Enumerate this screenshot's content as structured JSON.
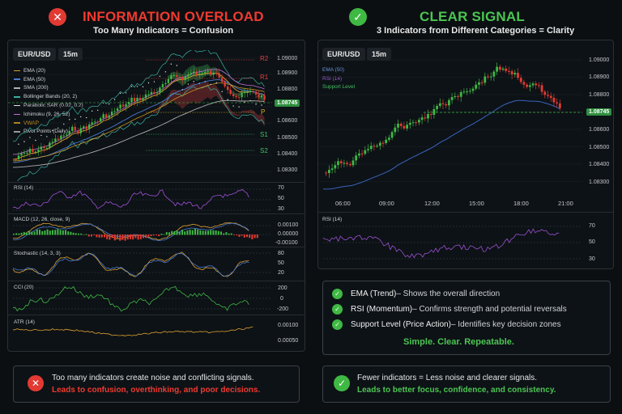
{
  "left": {
    "title": "INFORMATION OVERLOAD",
    "subtitle": "Too Many Indicators = Confusion",
    "symbol": "EUR/USD",
    "timeframe": "15m",
    "legend": [
      {
        "label": "EMA (20)",
        "color": "#e0a030"
      },
      {
        "label": "EMA (50)",
        "color": "#4a7bd0"
      },
      {
        "label": "SMA (200)",
        "color": "#b0b0b0"
      },
      {
        "label": "Bollinger Bands (20, 2)",
        "color": "#3ab0a0"
      },
      {
        "label": "Parabolic SAR (0.02, 0.2)",
        "color": "#e0e0e0"
      },
      {
        "label": "Ichimoku (9, 26, 52)",
        "color": "#c070d0"
      },
      {
        "label": "VWAP",
        "color": "#e0a020"
      },
      {
        "label": "Pivot Points (Daily)",
        "color": "#9a9a9a"
      }
    ],
    "price_ticks": [
      "1.09000",
      "1.08900",
      "1.08800",
      "1.08700",
      "1.08600",
      "1.08500",
      "1.08400",
      "1.08300"
    ],
    "current_price": "1.08745",
    "pivots": [
      {
        "label": "R2",
        "color": "#e04040"
      },
      {
        "label": "R1",
        "color": "#e04040"
      },
      {
        "label": "P",
        "color": "#e0b030"
      },
      {
        "label": "S1",
        "color": "#40c060"
      },
      {
        "label": "S2",
        "color": "#40c060"
      }
    ],
    "rsi": {
      "label": "RSI (14)",
      "ticks": [
        "70",
        "50",
        "30"
      ]
    },
    "macd": {
      "label": "MACD (12, 26, close, 9)",
      "ticks": [
        "0.00100",
        "0.00000",
        "-0.00100"
      ]
    },
    "stoch": {
      "label": "Stochastic (14, 3, 3)",
      "ticks": [
        "80",
        "50",
        "20"
      ]
    },
    "cci": {
      "label": "CCI (20)",
      "ticks": [
        "200",
        "0",
        "-200"
      ]
    },
    "atr": {
      "label": "ATR (14)",
      "ticks": [
        "0.00100",
        "0.00050"
      ]
    },
    "note_line1": "Too many indicators create noise and conflicting signals.",
    "note_line2": "Leads to confusion, overthinking, and poor decisions."
  },
  "right": {
    "title": "CLEAR SIGNAL",
    "subtitle": "3 Indicators from Different Categories = Clarity",
    "symbol": "EUR/USD",
    "timeframe": "15m",
    "legend": [
      {
        "label": "EMA (50)",
        "color": "#4a7bd0"
      },
      {
        "label": "RSI (14)",
        "color": "#9a50d0"
      },
      {
        "label": "Support Level",
        "color": "#40c060"
      }
    ],
    "price_ticks": [
      "1.09000",
      "1.08900",
      "1.08800",
      "1.08700",
      "1.08600",
      "1.08500",
      "1.08400",
      "1.08300"
    ],
    "current_price": "1.08745",
    "time_ticks": [
      "06:00",
      "09:00",
      "12:00",
      "15:00",
      "18:00",
      "21:00"
    ],
    "rsi": {
      "label": "RSI (14)",
      "ticks": [
        "70",
        "50",
        "30"
      ]
    },
    "items": [
      {
        "bold": "EMA (Trend)",
        "text": " – Shows the overall direction"
      },
      {
        "bold": "RSI (Momentum)",
        "text": " – Confirms strength and potential reversals"
      },
      {
        "bold": "Support Level (Price Action)",
        "text": " – Identifies key decision zones"
      }
    ],
    "tagline": "Simple. Clear. Repeatable.",
    "note_line1": "Fewer indicators = Less noise and clearer signals.",
    "note_line2": "Leads to better focus, confidence, and consistency."
  },
  "colors": {
    "red": "#e8322d",
    "green": "#3fb844",
    "green_text": "#4cc552",
    "red_text": "#f03a30"
  }
}
